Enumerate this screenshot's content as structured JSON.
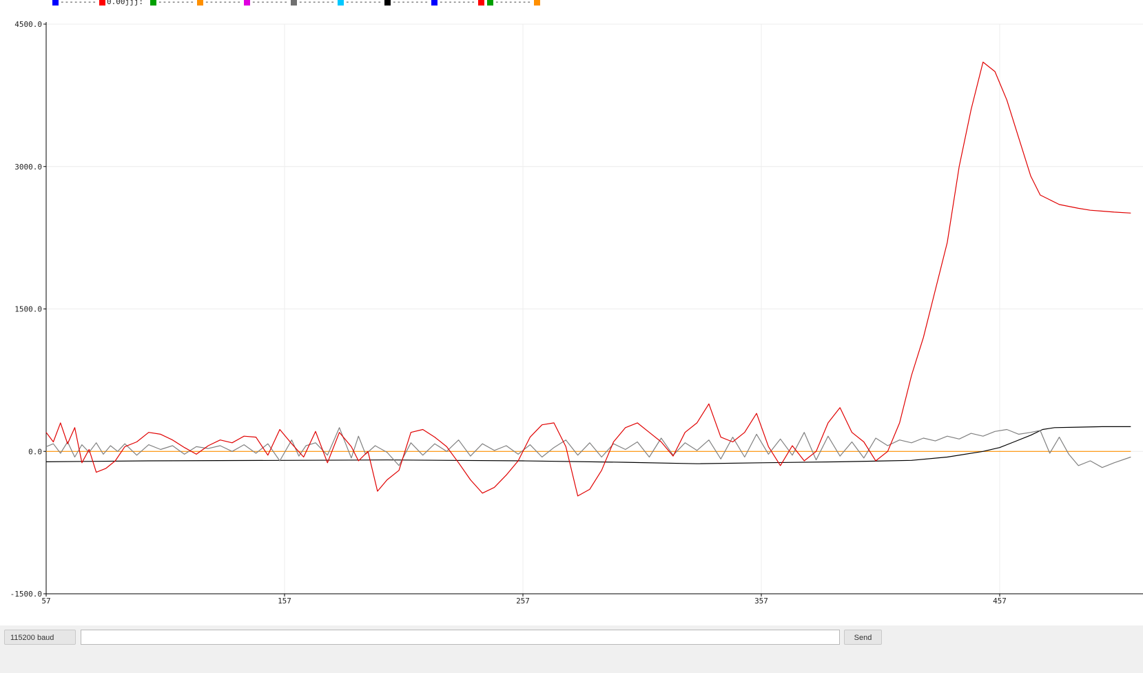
{
  "legend": [
    {
      "color": "#0000ff",
      "label": "--------"
    },
    {
      "color": "#ff0000",
      "label": "0.00jjj:"
    },
    {
      "color": "#00a000",
      "label": "--------"
    },
    {
      "color": "#ff9000",
      "label": "--------"
    },
    {
      "color": "#e000e0",
      "label": "--------"
    },
    {
      "color": "#707070",
      "label": "--------"
    },
    {
      "color": "#00c8ff",
      "label": "--------"
    },
    {
      "color": "#000000",
      "label": "--------"
    },
    {
      "color": "#0000ff",
      "label": "--------"
    },
    {
      "color": "#ff0000",
      "label": ""
    },
    {
      "color": "#00a000",
      "label": "--------"
    },
    {
      "color": "#ff9000",
      "label": ""
    }
  ],
  "bottom_bar": {
    "baud": "115200 baud",
    "send_value": "",
    "send_label": "Send"
  },
  "chart_data": {
    "type": "line",
    "xlim": [
      57,
      512
    ],
    "ylim": [
      -1500,
      4500
    ],
    "xticks": [
      "57",
      "157",
      "257",
      "357",
      "457"
    ],
    "xtick_values": [
      57,
      157,
      257,
      357,
      457
    ],
    "yticks": [
      "4500.0",
      "3000.0",
      "1500.0",
      "0.0",
      "-1500.0"
    ],
    "ytick_values": [
      4500,
      3000,
      1500,
      0,
      -1500
    ],
    "grid": true,
    "series": [
      {
        "color": "#ff9000",
        "key": "orange",
        "x": [
          57,
          512
        ],
        "y": [
          0,
          0
        ]
      },
      {
        "color": "#000000",
        "key": "black",
        "x": [
          57,
          100,
          157,
          200,
          257,
          300,
          330,
          357,
          390,
          410,
          420,
          435,
          450,
          457,
          463,
          470,
          475,
          480,
          490,
          500,
          512
        ],
        "y": [
          -110,
          -100,
          -95,
          -90,
          -100,
          -115,
          -130,
          -120,
          -110,
          -100,
          -95,
          -60,
          0,
          40,
          100,
          170,
          230,
          250,
          255,
          260,
          260
        ]
      },
      {
        "color": "#808080",
        "key": "gray",
        "x": [
          57,
          60,
          63,
          66,
          69,
          72,
          75,
          78,
          81,
          84,
          87,
          90,
          95,
          100,
          105,
          110,
          115,
          120,
          125,
          130,
          135,
          140,
          145,
          150,
          155,
          160,
          163,
          166,
          170,
          175,
          180,
          185,
          188,
          191,
          195,
          200,
          205,
          210,
          215,
          220,
          225,
          230,
          235,
          240,
          245,
          250,
          255,
          260,
          265,
          270,
          275,
          280,
          285,
          290,
          295,
          300,
          305,
          310,
          315,
          320,
          325,
          330,
          335,
          340,
          345,
          350,
          355,
          360,
          365,
          370,
          375,
          380,
          385,
          390,
          395,
          400,
          405,
          410,
          415,
          420,
          425,
          430,
          435,
          440,
          445,
          450,
          455,
          460,
          465,
          470,
          474,
          478,
          482,
          486,
          490,
          495,
          500,
          505,
          512
        ],
        "y": [
          50,
          80,
          -20,
          100,
          -60,
          70,
          -10,
          90,
          -30,
          60,
          0,
          80,
          -40,
          70,
          20,
          60,
          -30,
          50,
          30,
          60,
          0,
          70,
          -20,
          80,
          -100,
          120,
          -50,
          60,
          90,
          -40,
          250,
          -70,
          160,
          -30,
          60,
          -10,
          -150,
          90,
          -40,
          80,
          0,
          120,
          -50,
          80,
          10,
          60,
          -30,
          70,
          -60,
          40,
          120,
          -40,
          90,
          -60,
          80,
          20,
          100,
          -60,
          140,
          -40,
          90,
          10,
          120,
          -80,
          150,
          -60,
          180,
          -30,
          130,
          -40,
          200,
          -90,
          160,
          -50,
          100,
          -70,
          140,
          60,
          120,
          90,
          140,
          110,
          160,
          130,
          190,
          160,
          210,
          230,
          180,
          200,
          220,
          -20,
          150,
          -30,
          -150,
          -100,
          -170,
          -120,
          -60
        ]
      },
      {
        "color": "#e00000",
        "key": "red",
        "x": [
          57,
          60,
          63,
          66,
          69,
          72,
          75,
          78,
          82,
          86,
          90,
          95,
          100,
          105,
          110,
          115,
          120,
          125,
          130,
          135,
          140,
          145,
          150,
          155,
          160,
          165,
          170,
          175,
          180,
          185,
          188,
          192,
          196,
          200,
          205,
          210,
          215,
          220,
          225,
          230,
          235,
          240,
          245,
          250,
          255,
          260,
          265,
          270,
          275,
          280,
          285,
          290,
          295,
          300,
          305,
          310,
          315,
          320,
          325,
          330,
          335,
          340,
          345,
          350,
          355,
          360,
          365,
          370,
          375,
          380,
          385,
          390,
          395,
          400,
          405,
          410,
          415,
          420,
          425,
          430,
          435,
          440,
          445,
          450,
          455,
          460,
          465,
          470,
          474,
          478,
          482,
          486,
          490,
          495,
          500,
          505,
          512
        ],
        "y": [
          200,
          100,
          300,
          80,
          250,
          -120,
          20,
          -220,
          -180,
          -100,
          50,
          100,
          200,
          180,
          120,
          40,
          -30,
          60,
          120,
          90,
          160,
          150,
          -40,
          230,
          80,
          -60,
          210,
          -120,
          200,
          50,
          -100,
          0,
          -420,
          -300,
          -200,
          200,
          230,
          150,
          50,
          -120,
          -300,
          -440,
          -380,
          -250,
          -100,
          150,
          280,
          300,
          50,
          -470,
          -400,
          -200,
          100,
          250,
          300,
          200,
          100,
          -50,
          200,
          300,
          500,
          150,
          100,
          200,
          400,
          50,
          -150,
          60,
          -100,
          0,
          300,
          460,
          200,
          100,
          -100,
          0,
          300,
          800,
          1200,
          1700,
          2200,
          3000,
          3600,
          4100,
          4000,
          3700,
          3300,
          2900,
          2700,
          2650,
          2600,
          2580,
          2560,
          2540,
          2530,
          2520,
          2510
        ]
      }
    ]
  }
}
